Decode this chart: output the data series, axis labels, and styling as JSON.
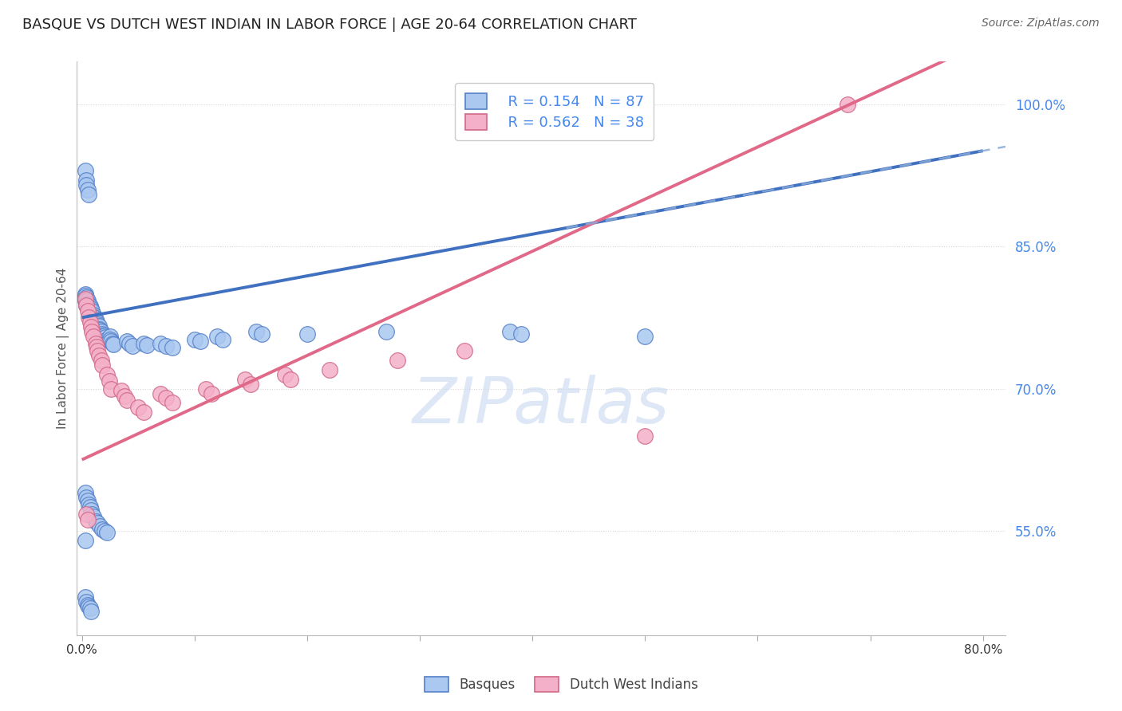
{
  "title": "BASQUE VS DUTCH WEST INDIAN IN LABOR FORCE | AGE 20-64 CORRELATION CHART",
  "source": "Source: ZipAtlas.com",
  "ylabel": "In Labor Force | Age 20-64",
  "xlim": [
    -0.005,
    0.82
  ],
  "ylim": [
    0.44,
    1.045
  ],
  "yticks_right": [
    0.55,
    0.7,
    0.85,
    1.0
  ],
  "ytick_labels_right": [
    "55.0%",
    "70.0%",
    "85.0%",
    "100.0%"
  ],
  "xticks": [
    0.0,
    0.1,
    0.2,
    0.3,
    0.4,
    0.5,
    0.6,
    0.7,
    0.8
  ],
  "xtick_labels": [
    "0.0%",
    "",
    "",
    "",
    "",
    "",
    "",
    "",
    "80.0%"
  ],
  "legend_r_blue": "R = 0.154",
  "legend_n_blue": "N = 87",
  "legend_r_pink": "R = 0.562",
  "legend_n_pink": "N = 38",
  "blue_fill": "#aac8f0",
  "blue_edge": "#5580c8",
  "pink_fill": "#f4b0c8",
  "pink_edge": "#d06888",
  "blue_line": "#4070c0",
  "pink_line": "#e06888",
  "dashed_line": "#8aaad8",
  "grid_color": "#cccccc",
  "label_color": "#4488ee",
  "watermark_color": "#c8d8f0",
  "background": "#ffffff",
  "title_color": "#222222",
  "source_color": "#666666",
  "blue_line_intercept": 0.775,
  "blue_line_slope": 0.22,
  "pink_line_intercept": 0.625,
  "pink_line_slope": 0.55,
  "dashed_line_intercept": 0.775,
  "dashed_line_slope": 0.22,
  "basques_x": [
    0.003,
    0.003,
    0.003,
    0.003,
    0.004,
    0.004,
    0.004,
    0.004,
    0.005,
    0.005,
    0.005,
    0.006,
    0.006,
    0.007,
    0.007,
    0.007,
    0.008,
    0.008,
    0.009,
    0.009,
    0.01,
    0.01,
    0.011,
    0.011,
    0.012,
    0.013,
    0.014,
    0.014,
    0.015,
    0.015,
    0.016,
    0.017,
    0.018,
    0.019,
    0.02,
    0.021,
    0.022,
    0.025,
    0.025,
    0.026,
    0.027,
    0.028,
    0.04,
    0.042,
    0.045,
    0.055,
    0.058,
    0.07,
    0.075,
    0.08,
    0.1,
    0.105,
    0.12,
    0.125,
    0.155,
    0.16,
    0.2,
    0.27,
    0.38,
    0.39,
    0.5,
    0.003,
    0.004,
    0.004,
    0.005,
    0.006,
    0.003,
    0.004,
    0.005,
    0.006,
    0.007,
    0.008,
    0.009,
    0.01,
    0.012,
    0.014,
    0.016,
    0.018,
    0.02,
    0.022,
    0.003,
    0.004,
    0.005,
    0.006,
    0.007,
    0.008,
    0.003
  ],
  "basques_y": [
    0.8,
    0.798,
    0.795,
    0.793,
    0.796,
    0.793,
    0.79,
    0.788,
    0.793,
    0.79,
    0.787,
    0.79,
    0.786,
    0.787,
    0.784,
    0.781,
    0.785,
    0.781,
    0.782,
    0.778,
    0.778,
    0.775,
    0.775,
    0.772,
    0.773,
    0.77,
    0.768,
    0.765,
    0.766,
    0.763,
    0.762,
    0.76,
    0.758,
    0.756,
    0.756,
    0.754,
    0.752,
    0.755,
    0.752,
    0.75,
    0.748,
    0.747,
    0.75,
    0.748,
    0.745,
    0.748,
    0.746,
    0.748,
    0.745,
    0.743,
    0.752,
    0.75,
    0.755,
    0.752,
    0.76,
    0.758,
    0.758,
    0.76,
    0.76,
    0.758,
    0.755,
    0.93,
    0.92,
    0.915,
    0.91,
    0.905,
    0.59,
    0.585,
    0.582,
    0.578,
    0.575,
    0.572,
    0.568,
    0.565,
    0.56,
    0.558,
    0.555,
    0.552,
    0.55,
    0.548,
    0.48,
    0.475,
    0.472,
    0.47,
    0.468,
    0.465,
    0.54
  ],
  "dwi_x": [
    0.003,
    0.004,
    0.005,
    0.006,
    0.007,
    0.008,
    0.009,
    0.01,
    0.012,
    0.013,
    0.014,
    0.015,
    0.017,
    0.018,
    0.022,
    0.024,
    0.026,
    0.035,
    0.038,
    0.04,
    0.05,
    0.055,
    0.07,
    0.075,
    0.08,
    0.11,
    0.115,
    0.145,
    0.15,
    0.18,
    0.185,
    0.22,
    0.28,
    0.34,
    0.5,
    0.68,
    0.004,
    0.005
  ],
  "dwi_y": [
    0.795,
    0.788,
    0.782,
    0.775,
    0.77,
    0.765,
    0.76,
    0.755,
    0.748,
    0.744,
    0.74,
    0.735,
    0.73,
    0.725,
    0.715,
    0.708,
    0.7,
    0.698,
    0.692,
    0.688,
    0.68,
    0.675,
    0.695,
    0.69,
    0.685,
    0.7,
    0.695,
    0.71,
    0.705,
    0.715,
    0.71,
    0.72,
    0.73,
    0.74,
    0.65,
    1.0,
    0.568,
    0.562
  ]
}
